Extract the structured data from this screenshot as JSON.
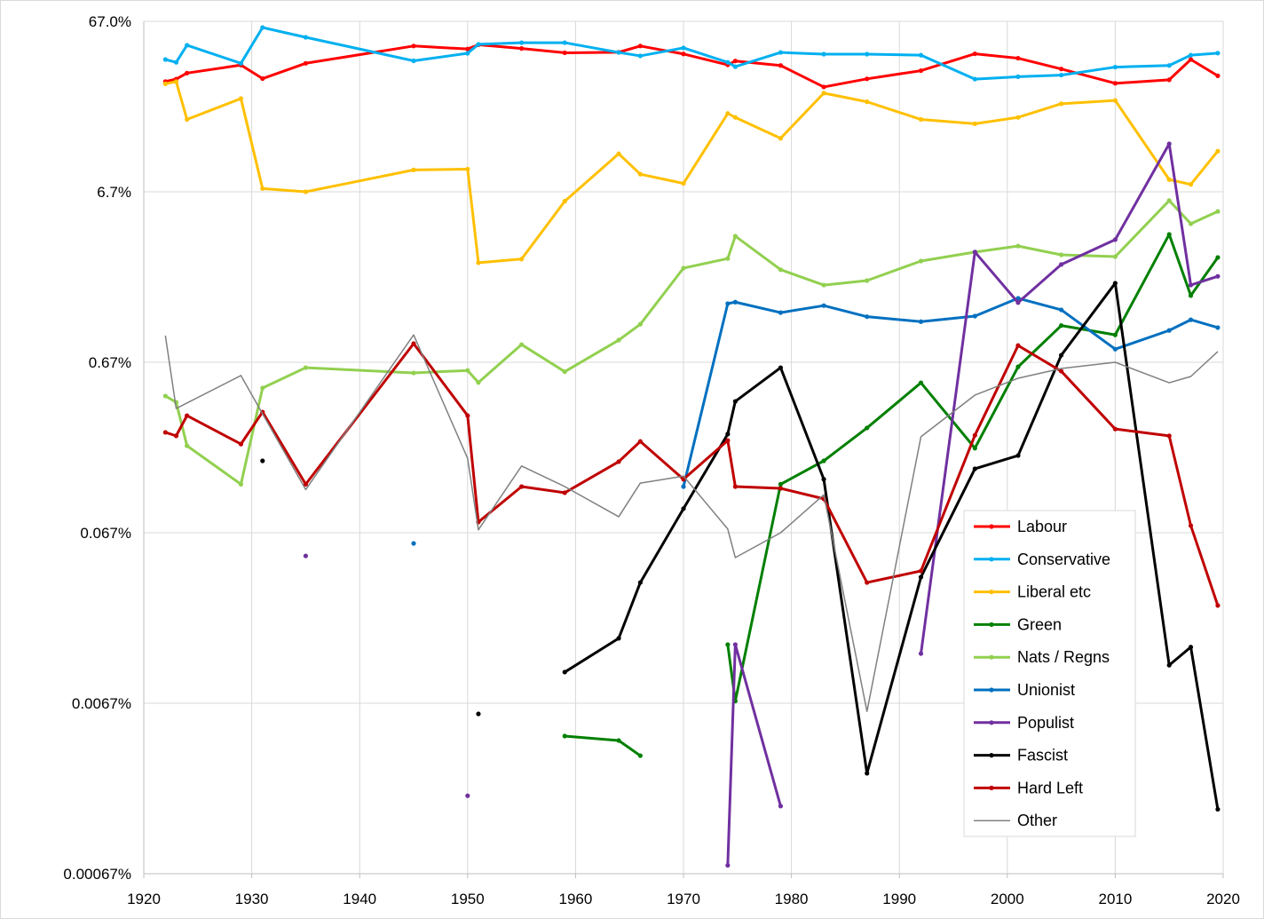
{
  "chart_data": {
    "type": "line",
    "title": "",
    "xlabel": "",
    "ylabel": "",
    "yscale": "log",
    "xlim": [
      1920,
      2020
    ],
    "ylim": [
      0.00067,
      67.0
    ],
    "grid": true,
    "legend_position": "bottom-right",
    "x_ticks": [
      "1920",
      "1930",
      "1940",
      "1950",
      "1960",
      "1970",
      "1980",
      "1990",
      "2000",
      "2010",
      "2020"
    ],
    "y_ticks": [
      {
        "value": 67.0,
        "label": "67.0%"
      },
      {
        "value": 6.7,
        "label": "6.7%"
      },
      {
        "value": 0.67,
        "label": "0.67%"
      },
      {
        "value": 0.067,
        "label": "0.067%"
      },
      {
        "value": 0.0067,
        "label": "0.0067%"
      },
      {
        "value": 0.00067,
        "label": "0.00067%"
      }
    ],
    "series": [
      {
        "name": "Labour",
        "color": "#ff0000",
        "width": 3,
        "segments": [
          [
            [
              1922,
              29.7
            ],
            [
              1923,
              30.7
            ],
            [
              1924,
              33.3
            ],
            [
              1929,
              37.1
            ],
            [
              1931,
              30.9
            ],
            [
              1935,
              38.0
            ],
            [
              1945,
              48.0
            ],
            [
              1950,
              46.1
            ],
            [
              1951,
              48.8
            ],
            [
              1955,
              46.4
            ],
            [
              1959,
              43.8
            ],
            [
              1964,
              44.1
            ],
            [
              1966,
              48.0
            ],
            [
              1970,
              43.1
            ],
            [
              1974.1,
              37.2
            ],
            [
              1974.8,
              39.2
            ],
            [
              1979,
              36.9
            ],
            [
              1983,
              27.6
            ],
            [
              1987,
              30.8
            ],
            [
              1992,
              34.4
            ],
            [
              1997,
              43.2
            ],
            [
              2001,
              40.7
            ],
            [
              2005,
              35.2
            ],
            [
              2010,
              29.0
            ],
            [
              2015,
              30.4
            ],
            [
              2017,
              40.0
            ],
            [
              2019.5,
              32.1
            ]
          ]
        ]
      },
      {
        "name": "Conservative",
        "color": "#00b0f0",
        "width": 3,
        "segments": [
          [
            [
              1922,
              40.0
            ],
            [
              1923,
              38.5
            ],
            [
              1924,
              48.5
            ],
            [
              1929,
              38.0
            ],
            [
              1931,
              61.6
            ],
            [
              1935,
              54.0
            ],
            [
              1945,
              39.3
            ],
            [
              1950,
              43.5
            ],
            [
              1951,
              49.1
            ],
            [
              1955,
              50.2
            ],
            [
              1959,
              50.2
            ],
            [
              1964,
              44.0
            ],
            [
              1966,
              42.0
            ],
            [
              1970,
              46.8
            ],
            [
              1974.1,
              38.5
            ],
            [
              1974.8,
              36.3
            ],
            [
              1979,
              44.0
            ],
            [
              1983,
              43.0
            ],
            [
              1987,
              43.0
            ],
            [
              1992,
              42.4
            ],
            [
              1997,
              30.7
            ],
            [
              2001,
              31.7
            ],
            [
              2005,
              32.4
            ],
            [
              2010,
              36.1
            ],
            [
              2015,
              36.9
            ],
            [
              2017,
              42.4
            ],
            [
              2019.5,
              43.6
            ]
          ]
        ]
      },
      {
        "name": "Liberal etc",
        "color": "#ffc000",
        "width": 3,
        "segments": [
          [
            [
              1922,
              28.8
            ],
            [
              1923,
              29.7
            ],
            [
              1924,
              17.8
            ],
            [
              1929,
              23.6
            ],
            [
              1931,
              7.0
            ],
            [
              1935,
              6.7
            ],
            [
              1945,
              9.0
            ],
            [
              1950,
              9.1
            ],
            [
              1951,
              2.57
            ],
            [
              1955,
              2.7
            ],
            [
              1959,
              5.9
            ],
            [
              1964,
              11.2
            ],
            [
              1966,
              8.5
            ],
            [
              1970,
              7.5
            ],
            [
              1974.1,
              19.3
            ],
            [
              1974.8,
              18.3
            ],
            [
              1979,
              13.8
            ],
            [
              1983,
              25.4
            ],
            [
              1987,
              22.6
            ],
            [
              1992,
              17.8
            ],
            [
              1997,
              16.8
            ],
            [
              2001,
              18.3
            ],
            [
              2005,
              22.0
            ],
            [
              2010,
              23.0
            ],
            [
              2015,
              7.9
            ],
            [
              2017,
              7.4
            ],
            [
              2019.5,
              11.6
            ]
          ]
        ]
      },
      {
        "name": "Green",
        "color": "#008000",
        "width": 3,
        "segments": [
          [
            [
              1959,
              0.0043
            ],
            [
              1964,
              0.00405
            ],
            [
              1966,
              0.0033
            ]
          ],
          [
            [
              1974.1,
              0.0148
            ],
            [
              1974.8,
              0.0069
            ],
            [
              1979,
              0.129
            ],
            [
              1983,
              0.177
            ],
            [
              1987,
              0.276
            ],
            [
              1992,
              0.508
            ],
            [
              1997,
              0.21
            ],
            [
              2001,
              0.63
            ],
            [
              2005,
              1.1
            ],
            [
              2010,
              0.97
            ],
            [
              2015,
              3.77
            ],
            [
              2017,
              1.65
            ],
            [
              2019.5,
              2.76
            ]
          ]
        ]
      },
      {
        "name": "Nats / Regns",
        "color": "#92d050",
        "width": 3,
        "segments": [
          [
            [
              1922,
              0.425
            ],
            [
              1923,
              0.39
            ],
            [
              1924,
              0.217
            ],
            [
              1929,
              0.129
            ],
            [
              1931,
              0.473
            ],
            [
              1935,
              0.623
            ],
            [
              1945,
              0.58
            ],
            [
              1950,
              0.6
            ],
            [
              1951,
              0.51
            ],
            [
              1955,
              0.851
            ],
            [
              1959,
              0.59
            ],
            [
              1964,
              0.904
            ],
            [
              1966,
              1.12
            ],
            [
              1970,
              2.39
            ],
            [
              1974.1,
              2.72
            ],
            [
              1974.8,
              3.68
            ],
            [
              1979,
              2.34
            ],
            [
              1983,
              1.9
            ],
            [
              1987,
              2.02
            ],
            [
              1992,
              2.63
            ],
            [
              1997,
              2.97
            ],
            [
              2001,
              3.22
            ],
            [
              2005,
              2.86
            ],
            [
              2010,
              2.79
            ],
            [
              2015,
              5.95
            ],
            [
              2017,
              4.35
            ],
            [
              2019.5,
              5.14
            ]
          ]
        ]
      },
      {
        "name": "Unionist",
        "color": "#0070c0",
        "width": 3,
        "segments": [
          [
            [
              1945,
              0.058
            ]
          ],
          [
            [
              1970,
              0.125
            ],
            [
              1974.1,
              1.48
            ],
            [
              1974.8,
              1.51
            ],
            [
              1979,
              1.31
            ],
            [
              1983,
              1.44
            ],
            [
              1987,
              1.24
            ],
            [
              1992,
              1.16
            ],
            [
              1997,
              1.25
            ],
            [
              2001,
              1.59
            ],
            [
              2005,
              1.36
            ],
            [
              2010,
              0.8
            ],
            [
              2015,
              1.03
            ],
            [
              2017,
              1.19
            ],
            [
              2019.5,
              1.07
            ]
          ]
        ]
      },
      {
        "name": "Populist",
        "color": "#7030a0",
        "width": 3,
        "segments": [
          [
            [
              1935,
              0.049
            ]
          ],
          [
            [
              1950,
              0.00192
            ]
          ],
          [
            [
              1974.1,
              0.00075
            ],
            [
              1974.8,
              0.0148
            ],
            [
              1979,
              0.00167
            ]
          ],
          [
            [
              1992,
              0.0131
            ],
            [
              1997,
              2.97
            ],
            [
              2001,
              1.5
            ],
            [
              2005,
              2.51
            ],
            [
              2010,
              3.51
            ],
            [
              2015,
              12.8
            ],
            [
              2017,
              1.9
            ],
            [
              2019.5,
              2.14
            ]
          ]
        ]
      },
      {
        "name": "Fascist",
        "color": "#000000",
        "width": 3,
        "segments": [
          [
            [
              1931,
              0.177
            ]
          ],
          [
            [
              1951,
              0.0058
            ]
          ],
          [
            [
              1959,
              0.0102
            ],
            [
              1964,
              0.0161
            ],
            [
              1966,
              0.0342
            ],
            [
              1970,
              0.0928
            ],
            [
              1974.1,
              0.254
            ],
            [
              1974.8,
              0.395
            ],
            [
              1979,
              0.623
            ],
            [
              1983,
              0.138
            ],
            [
              1987,
              0.0026
            ],
            [
              1992,
              0.0368
            ],
            [
              1997,
              0.159
            ],
            [
              2001,
              0.19
            ],
            [
              2005,
              0.737
            ],
            [
              2010,
              1.95
            ],
            [
              2015,
              0.0112
            ],
            [
              2017,
              0.0143
            ],
            [
              2019.5,
              0.0016
            ]
          ]
        ]
      },
      {
        "name": "Hard Left",
        "color": "#c00000",
        "width": 3,
        "segments": [
          [
            [
              1922,
              0.26
            ],
            [
              1923,
              0.248
            ],
            [
              1924,
              0.326
            ],
            [
              1929,
              0.222
            ],
            [
              1931,
              0.342
            ],
            [
              1935,
              0.129
            ],
            [
              1945,
              0.862
            ],
            [
              1950,
              0.326
            ],
            [
              1951,
              0.0774
            ],
            [
              1955,
              0.125
            ],
            [
              1959,
              0.115
            ],
            [
              1964,
              0.175
            ],
            [
              1966,
              0.23
            ],
            [
              1970,
              0.138
            ],
            [
              1974.1,
              0.233
            ],
            [
              1974.8,
              0.125
            ],
            [
              1979,
              0.122
            ],
            [
              1983,
              0.106
            ],
            [
              1987,
              0.0342
            ],
            [
              1992,
              0.04
            ],
            [
              1997,
              0.25
            ],
            [
              2001,
              0.84
            ],
            [
              2005,
              0.594
            ],
            [
              2010,
              0.272
            ],
            [
              2015,
              0.248
            ],
            [
              2017,
              0.0738
            ],
            [
              2019.5,
              0.0251
            ]
          ]
        ]
      },
      {
        "name": "Other",
        "color": "#808080",
        "width": 1.5,
        "markers": false,
        "segments": [
          [
            [
              1922,
              0.96
            ],
            [
              1923,
              0.359
            ],
            [
              1929,
              0.56
            ],
            [
              1931,
              0.334
            ],
            [
              1935,
              0.12
            ],
            [
              1945,
              0.97
            ],
            [
              1950,
              0.183
            ],
            [
              1951,
              0.0697
            ],
            [
              1955,
              0.165
            ],
            [
              1959,
              0.125
            ],
            [
              1964,
              0.0832
            ],
            [
              1966,
              0.131
            ],
            [
              1970,
              0.144
            ],
            [
              1974.1,
              0.0705
            ],
            [
              1974.8,
              0.0479
            ],
            [
              1979,
              0.067
            ],
            [
              1983,
              0.112
            ],
            [
              1987,
              0.006
            ],
            [
              1992,
              0.245
            ],
            [
              1997,
              0.43
            ],
            [
              2001,
              0.54
            ],
            [
              2005,
              0.616
            ],
            [
              2010,
              0.67
            ],
            [
              2015,
              0.508
            ],
            [
              2017,
              0.553
            ],
            [
              2019.5,
              0.774
            ]
          ]
        ]
      }
    ]
  }
}
